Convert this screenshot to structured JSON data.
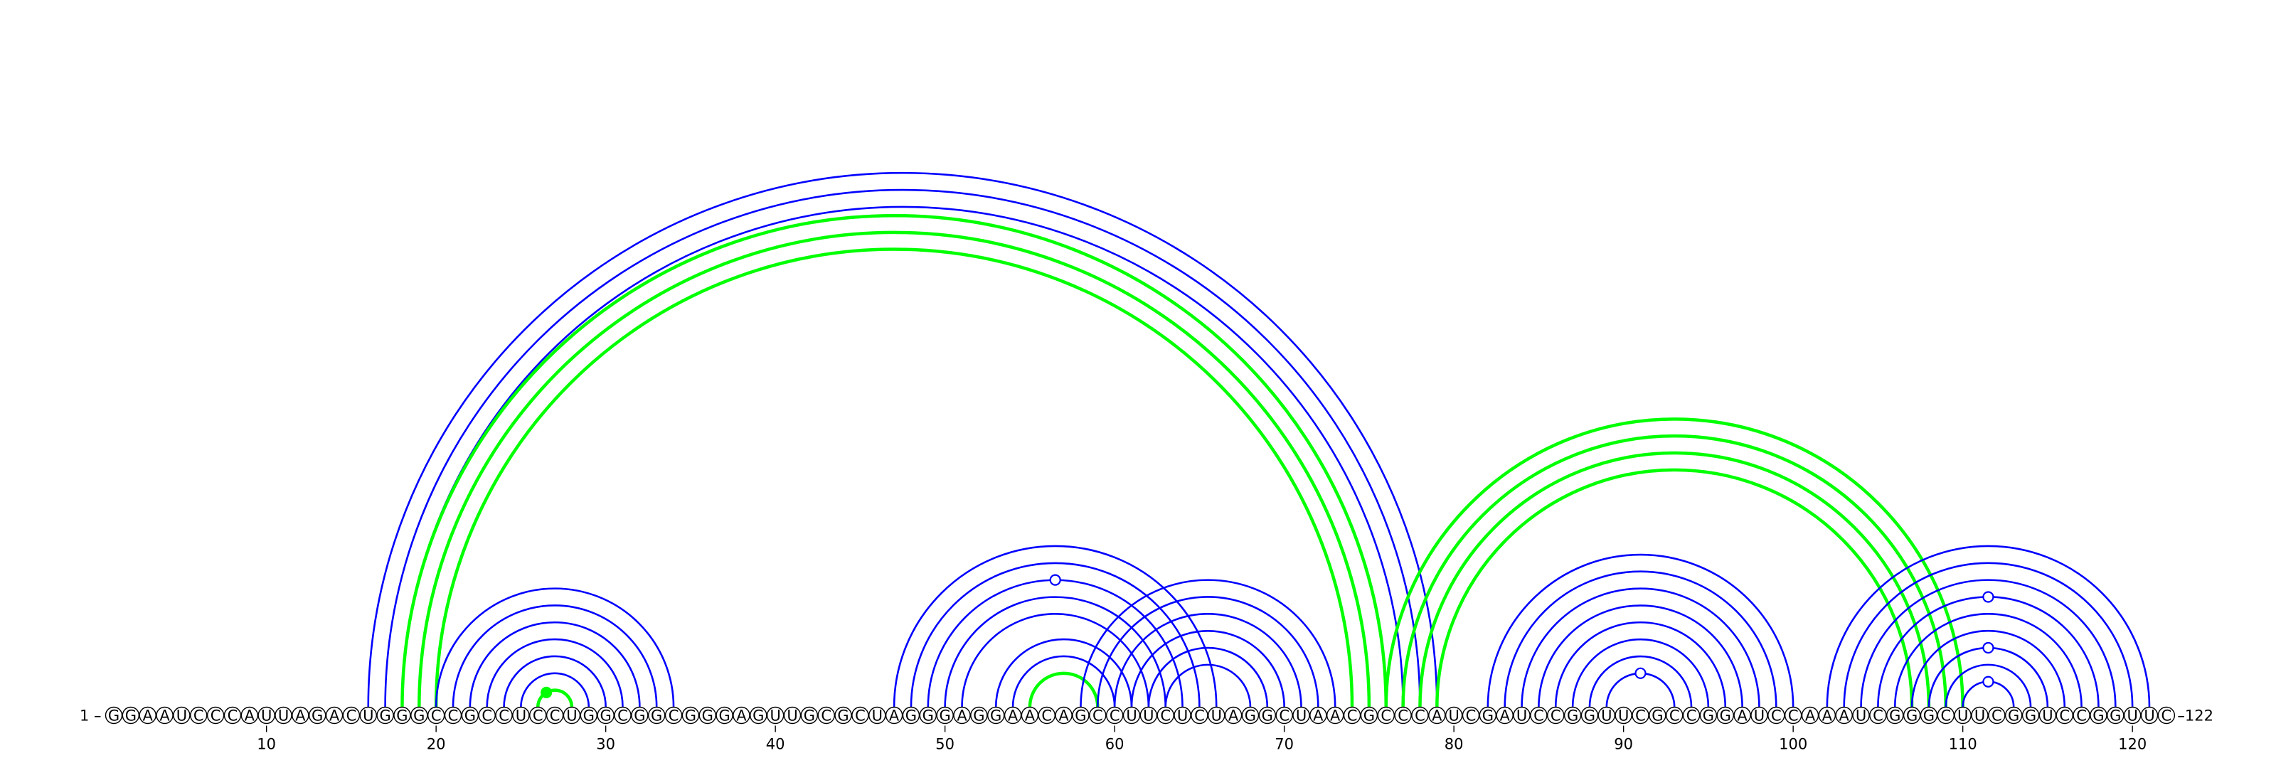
{
  "sequence": "GGAAUCCCAUUAGACUGGGCCGCCUCCUGGCGGCGGGAGUUGCGCUAGGGAGGAACAGCCUUCUCUAGGCUAACGCCCAUCGAUCCGGUUCGCCGGAUCCAAAUCGGGCUUCGGUCCGGUUC",
  "start_label": "1 –",
  "end_label": "–122",
  "ticks": [
    10,
    20,
    30,
    40,
    50,
    60,
    70,
    80,
    90,
    100,
    110,
    120
  ],
  "colors": {
    "blue": "#0000ff",
    "green": "#00ff00"
  },
  "arcs": [
    {
      "i": 16,
      "j": 79,
      "color": "blue"
    },
    {
      "i": 17,
      "j": 78,
      "color": "blue"
    },
    {
      "i": 18,
      "j": 77,
      "color": "blue"
    },
    {
      "i": 18,
      "j": 76,
      "color": "green"
    },
    {
      "i": 19,
      "j": 75,
      "color": "green"
    },
    {
      "i": 20,
      "j": 74,
      "color": "green"
    },
    {
      "i": 20,
      "j": 34,
      "color": "blue"
    },
    {
      "i": 21,
      "j": 33,
      "color": "blue"
    },
    {
      "i": 22,
      "j": 32,
      "color": "blue"
    },
    {
      "i": 23,
      "j": 31,
      "color": "blue"
    },
    {
      "i": 24,
      "j": 30,
      "color": "blue"
    },
    {
      "i": 25,
      "j": 29,
      "color": "blue"
    },
    {
      "i": 26,
      "j": 28,
      "color": "green"
    },
    {
      "i": 47,
      "j": 66,
      "color": "blue"
    },
    {
      "i": 48,
      "j": 65,
      "color": "blue"
    },
    {
      "i": 49,
      "j": 64,
      "color": "blue"
    },
    {
      "i": 50,
      "j": 63,
      "color": "blue"
    },
    {
      "i": 51,
      "j": 62,
      "color": "blue"
    },
    {
      "i": 53,
      "j": 61,
      "color": "blue"
    },
    {
      "i": 54,
      "j": 60,
      "color": "blue"
    },
    {
      "i": 55,
      "j": 59,
      "color": "green"
    },
    {
      "i": 58,
      "j": 73,
      "color": "blue"
    },
    {
      "i": 59,
      "j": 72,
      "color": "blue"
    },
    {
      "i": 60,
      "j": 71,
      "color": "blue"
    },
    {
      "i": 61,
      "j": 70,
      "color": "blue"
    },
    {
      "i": 62,
      "j": 69,
      "color": "blue"
    },
    {
      "i": 63,
      "j": 68,
      "color": "blue"
    },
    {
      "i": 76,
      "j": 110,
      "color": "green"
    },
    {
      "i": 77,
      "j": 109,
      "color": "green"
    },
    {
      "i": 78,
      "j": 108,
      "color": "green"
    },
    {
      "i": 79,
      "j": 107,
      "color": "green"
    },
    {
      "i": 82,
      "j": 100,
      "color": "blue"
    },
    {
      "i": 83,
      "j": 99,
      "color": "blue"
    },
    {
      "i": 84,
      "j": 98,
      "color": "blue"
    },
    {
      "i": 85,
      "j": 97,
      "color": "blue"
    },
    {
      "i": 86,
      "j": 96,
      "color": "blue"
    },
    {
      "i": 87,
      "j": 95,
      "color": "blue"
    },
    {
      "i": 88,
      "j": 94,
      "color": "blue"
    },
    {
      "i": 89,
      "j": 93,
      "color": "blue"
    },
    {
      "i": 102,
      "j": 121,
      "color": "blue"
    },
    {
      "i": 103,
      "j": 120,
      "color": "blue"
    },
    {
      "i": 104,
      "j": 119,
      "color": "blue"
    },
    {
      "i": 105,
      "j": 118,
      "color": "blue"
    },
    {
      "i": 106,
      "j": 117,
      "color": "blue"
    },
    {
      "i": 107,
      "j": 116,
      "color": "blue"
    },
    {
      "i": 108,
      "j": 115,
      "color": "blue"
    },
    {
      "i": 109,
      "j": 114,
      "color": "blue"
    },
    {
      "i": 110,
      "j": 113,
      "color": "blue"
    }
  ],
  "markers": [
    {
      "pos": 26.5,
      "height": 1,
      "color": "green",
      "filled": true
    },
    {
      "pos": 56.5,
      "height": 6,
      "color": "blue",
      "filled": false
    },
    {
      "pos": 91,
      "height": 1,
      "color": "blue",
      "filled": false
    },
    {
      "pos": 111.5,
      "height": 1,
      "color": "blue",
      "filled": false
    },
    {
      "pos": 111.5,
      "height": 3,
      "color": "blue",
      "filled": false
    },
    {
      "pos": 111.5,
      "height": 6,
      "color": "blue",
      "filled": false
    }
  ]
}
